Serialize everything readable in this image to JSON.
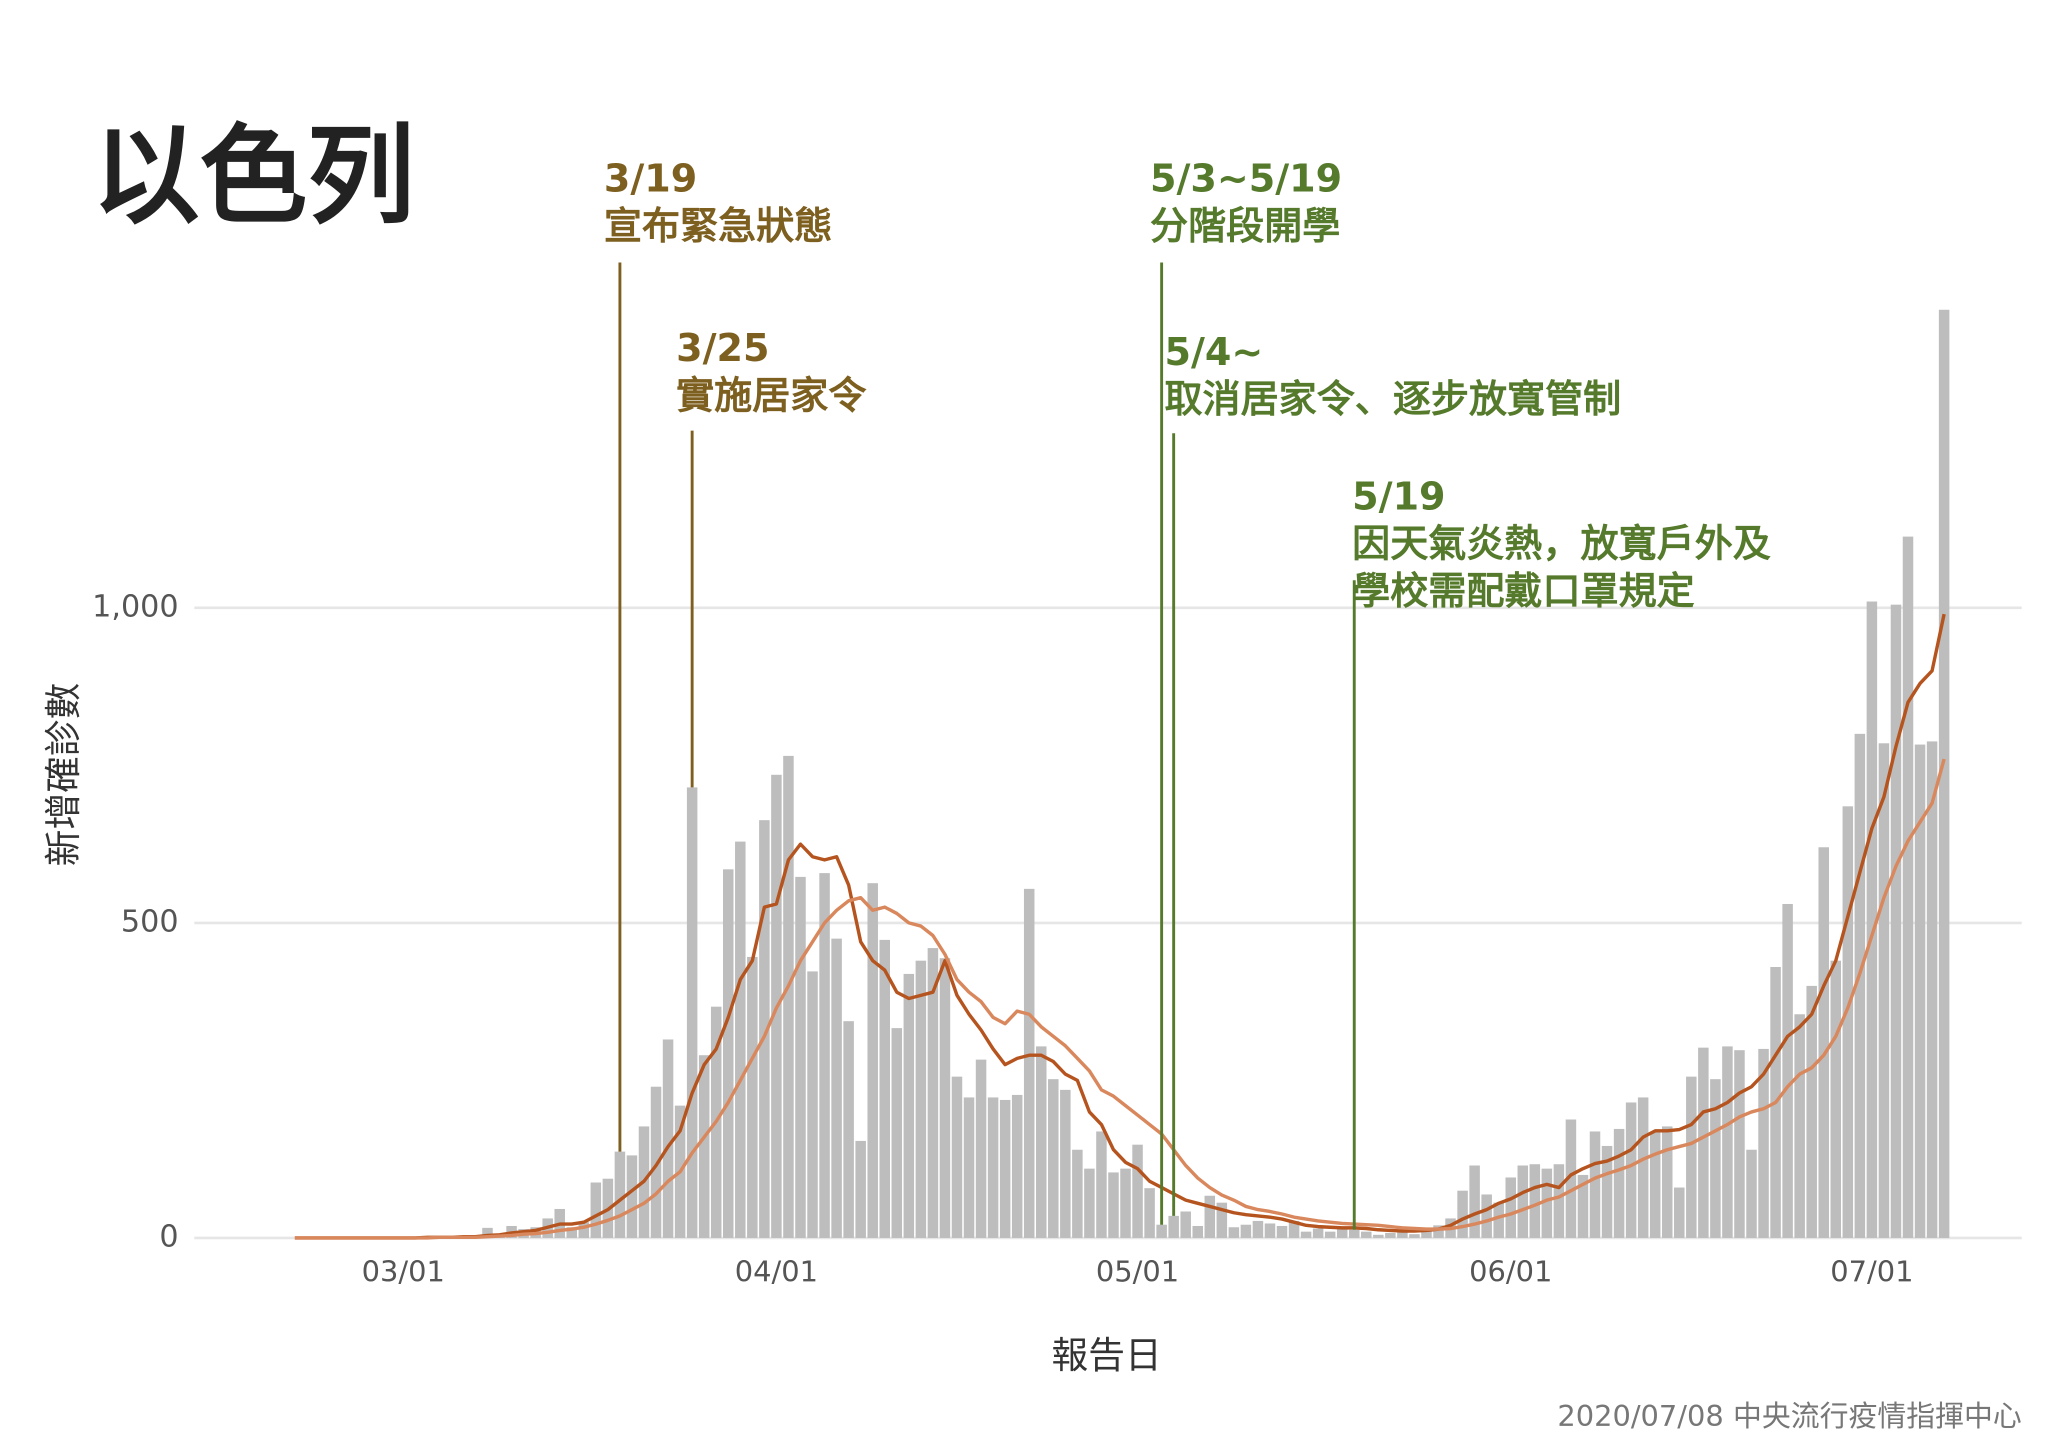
{
  "chart_data": {
    "type": "bar",
    "title": "以色列",
    "xlabel": "報告日",
    "ylabel": "新增確診數",
    "source": "2020/07/08 中央流行疫情指揮中心",
    "x": [
      "02/21",
      "02/22",
      "02/23",
      "02/24",
      "02/25",
      "02/26",
      "02/27",
      "02/28",
      "02/29",
      "03/01",
      "03/02",
      "03/03",
      "03/04",
      "03/05",
      "03/06",
      "03/07",
      "03/08",
      "03/09",
      "03/10",
      "03/11",
      "03/12",
      "03/13",
      "03/14",
      "03/15",
      "03/16",
      "03/17",
      "03/18",
      "03/19",
      "03/20",
      "03/21",
      "03/22",
      "03/23",
      "03/24",
      "03/25",
      "03/26",
      "03/27",
      "03/28",
      "03/29",
      "03/30",
      "03/31",
      "04/01",
      "04/02",
      "04/03",
      "04/04",
      "04/05",
      "04/06",
      "04/07",
      "04/08",
      "04/09",
      "04/10",
      "04/11",
      "04/12",
      "04/13",
      "04/14",
      "04/15",
      "04/16",
      "04/17",
      "04/18",
      "04/19",
      "04/20",
      "04/21",
      "04/22",
      "04/23",
      "04/24",
      "04/25",
      "04/26",
      "04/27",
      "04/28",
      "04/29",
      "04/30",
      "05/01",
      "05/02",
      "05/03",
      "05/04",
      "05/05",
      "05/06",
      "05/07",
      "05/08",
      "05/09",
      "05/10",
      "05/11",
      "05/12",
      "05/13",
      "05/14",
      "05/15",
      "05/16",
      "05/17",
      "05/18",
      "05/19",
      "05/20",
      "05/21",
      "05/22",
      "05/23",
      "05/24",
      "05/25",
      "05/26",
      "05/27",
      "05/28",
      "05/29",
      "05/30",
      "05/31",
      "06/01",
      "06/02",
      "06/03",
      "06/04",
      "06/05",
      "06/06",
      "06/07",
      "06/08",
      "06/09",
      "06/10",
      "06/11",
      "06/12",
      "06/13",
      "06/14",
      "06/15",
      "06/16",
      "06/17",
      "06/18",
      "06/19",
      "06/20",
      "06/21",
      "06/22",
      "06/23",
      "06/24",
      "06/25",
      "06/26",
      "06/27",
      "06/28",
      "06/29",
      "06/30",
      "07/01",
      "07/02",
      "07/03",
      "07/04",
      "07/05",
      "07/06",
      "07/07"
    ],
    "xticks": [
      "03/01",
      "04/01",
      "05/01",
      "06/01",
      "07/01"
    ],
    "ylim": [
      0,
      1500
    ],
    "yticks": [
      0,
      500,
      {
        "value": 1000,
        "label": "1,000"
      }
    ],
    "grid": true,
    "series": [
      {
        "type": "bar",
        "color": "#bdbdbd",
        "values": [
          0,
          0,
          0,
          0,
          0,
          0,
          0,
          0,
          0,
          0,
          0,
          2,
          3,
          1,
          2,
          4,
          16,
          6,
          19,
          14,
          17,
          31,
          46,
          17,
          25,
          88,
          94,
          137,
          131,
          177,
          240,
          315,
          210,
          715,
          290,
          367,
          585,
          629,
          446,
          663,
          735,
          765,
          573,
          423,
          579,
          475,
          344,
          154,
          563,
          473,
          333,
          419,
          440,
          460,
          444,
          256,
          223,
          283,
          223,
          219,
          227,
          554,
          304,
          252,
          235,
          140,
          110,
          169,
          104,
          110,
          148,
          79,
          21,
          35,
          42,
          19,
          67,
          56,
          17,
          21,
          27,
          23,
          19,
          27,
          10,
          15,
          10,
          17,
          13,
          10,
          5,
          8,
          12,
          6,
          15,
          20,
          31,
          75,
          115,
          69,
          56,
          96,
          115,
          117,
          110,
          117,
          188,
          100,
          169,
          146,
          173,
          215,
          223,
          169,
          177,
          80,
          256,
          302,
          252,
          304,
          298,
          140,
          300,
          430,
          530,
          355,
          400,
          620,
          440,
          685,
          800,
          1010,
          785,
          1005,
          1113,
          783,
          788,
          1473
        ]
      },
      {
        "type": "line",
        "color": "#b5541e",
        "values": [
          0,
          0,
          0,
          0,
          0,
          0,
          0,
          0,
          0,
          0,
          0,
          1,
          1,
          1,
          2,
          2,
          4,
          5,
          8,
          10,
          12,
          17,
          22,
          22,
          25,
          35,
          45,
          60,
          75,
          90,
          115,
          145,
          170,
          230,
          275,
          300,
          350,
          410,
          440,
          525,
          530,
          600,
          625,
          605,
          600,
          605,
          560,
          470,
          440,
          425,
          390,
          380,
          385,
          390,
          440,
          385,
          355,
          330,
          300,
          275,
          285,
          290,
          290,
          280,
          260,
          250,
          200,
          180,
          140,
          120,
          110,
          90,
          80,
          70,
          60,
          55,
          50,
          45,
          40,
          37,
          35,
          33,
          30,
          25,
          20,
          18,
          17,
          16,
          16,
          15,
          13,
          12,
          11,
          11,
          12,
          14,
          20,
          30,
          38,
          45,
          55,
          62,
          72,
          80,
          85,
          80,
          100,
          110,
          118,
          122,
          130,
          140,
          160,
          170,
          170,
          172,
          180,
          200,
          205,
          215,
          230,
          240,
          260,
          290,
          320,
          335,
          355,
          400,
          440,
          510,
          580,
          650,
          700,
          780,
          850,
          880,
          900,
          990
        ]
      },
      {
        "type": "line",
        "color": "#d9875c",
        "values": [
          0,
          0,
          0,
          0,
          0,
          0,
          0,
          0,
          0,
          0,
          0,
          0,
          1,
          1,
          1,
          1,
          2,
          3,
          4,
          6,
          7,
          9,
          12,
          14,
          17,
          22,
          28,
          35,
          45,
          55,
          70,
          90,
          105,
          135,
          160,
          185,
          215,
          250,
          285,
          320,
          365,
          400,
          440,
          470,
          500,
          520,
          535,
          540,
          520,
          525,
          515,
          500,
          495,
          480,
          450,
          410,
          390,
          375,
          350,
          340,
          360,
          355,
          335,
          320,
          305,
          285,
          265,
          235,
          225,
          210,
          195,
          180,
          165,
          140,
          115,
          95,
          80,
          68,
          60,
          50,
          45,
          42,
          38,
          33,
          30,
          27,
          25,
          23,
          22,
          21,
          20,
          18,
          16,
          15,
          14,
          14,
          15,
          18,
          22,
          27,
          33,
          38,
          45,
          52,
          60,
          65,
          75,
          85,
          95,
          102,
          108,
          115,
          125,
          133,
          140,
          145,
          150,
          160,
          170,
          180,
          192,
          200,
          205,
          215,
          240,
          260,
          270,
          290,
          320,
          365,
          420,
          480,
          540,
          590,
          630,
          660,
          690,
          760
        ]
      }
    ],
    "annotations": [
      {
        "x": "03/19",
        "color": "#7d5f1f",
        "lines": [
          "3/19",
          "宣布緊急狀態"
        ]
      },
      {
        "x": "03/25",
        "color": "#7d5f1f",
        "lines": [
          "3/25",
          "實施居家令"
        ]
      },
      {
        "x": "05/03",
        "color": "#557a2c",
        "lines": [
          "5/3~5/19",
          "分階段開學"
        ]
      },
      {
        "x": "05/04",
        "color": "#557a2c",
        "lines": [
          "5/4~",
          "取消居家令、逐步放寬管制"
        ]
      },
      {
        "x": "05/19",
        "color": "#557a2c",
        "lines": [
          "5/19",
          "因天氣炎熱，放寬戶外及",
          "學校需配戴口罩規定"
        ]
      }
    ]
  }
}
